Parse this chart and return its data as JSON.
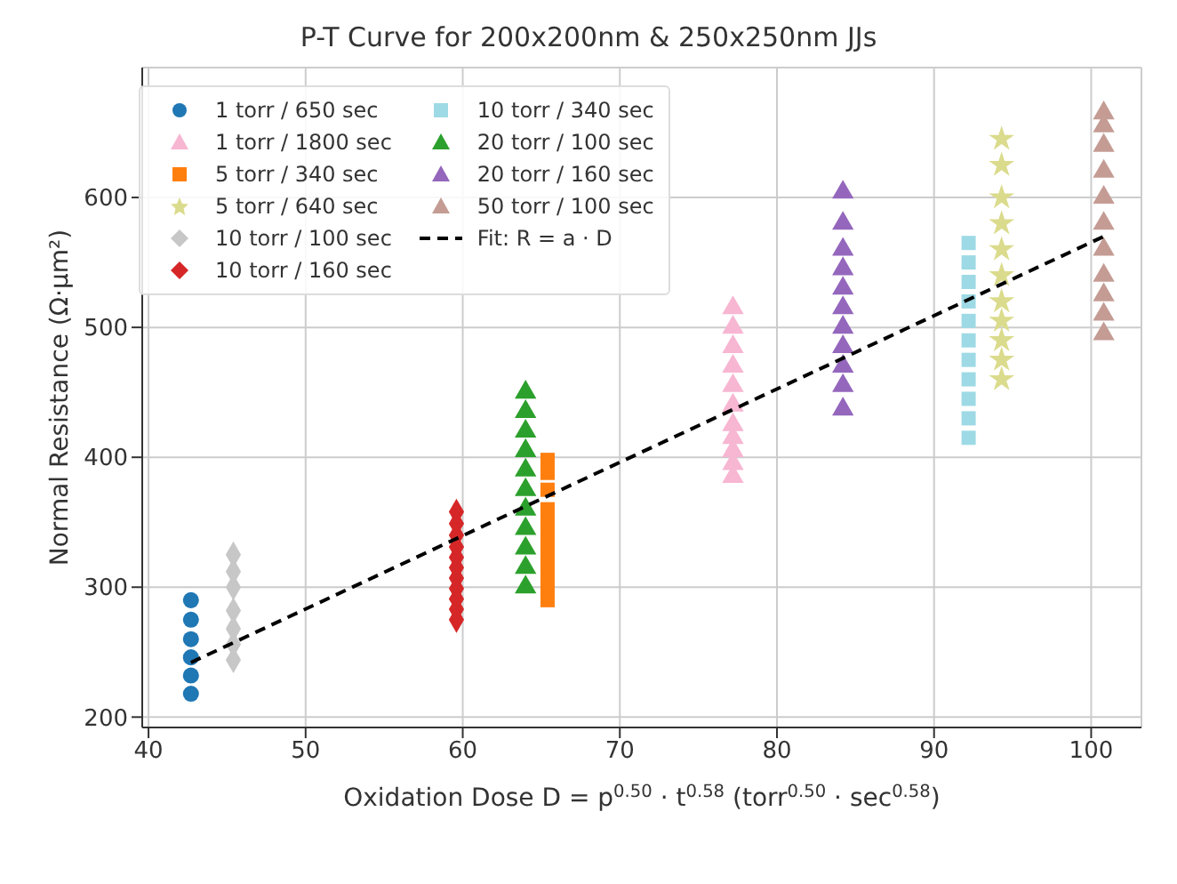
{
  "chart_data": {
    "type": "scatter",
    "title": "P-T Curve for 200x200nm & 250x250nm JJs",
    "xlabel": "Oxidation Dose D = p$^{0.50}$ · t$^{0.58}$ (torr$^{0.50}$ · sec$^{0.58}$)",
    "ylabel": "Normal Resistance (Ω·μm²)",
    "xlim": [
      39.6,
      103.2
    ],
    "xticks": [
      40,
      50,
      60,
      70,
      80,
      90,
      100
    ],
    "ylim": [
      192,
      700
    ],
    "yticks": [
      200,
      300,
      400,
      500,
      600
    ],
    "grid": true,
    "legend": "top left",
    "series": [
      {
        "name": "1 torr / 650 sec",
        "color": "#1f77b4",
        "marker": "circle",
        "x": [
          42.7,
          42.7,
          42.7,
          42.7,
          42.7,
          42.7
        ],
        "values": [
          218,
          232,
          246,
          260,
          275,
          290
        ]
      },
      {
        "name": "1 torr / 1800 sec",
        "color": "#f7b6d2",
        "marker": "triangle",
        "x": [
          77.2,
          77.2,
          77.2,
          77.2,
          77.2,
          77.2,
          77.2,
          77.2,
          77.2,
          77.2,
          77.2
        ],
        "values": [
          385,
          395,
          405,
          415,
          425,
          440,
          455,
          470,
          485,
          500,
          515
        ]
      },
      {
        "name": "5 torr / 340 sec",
        "color": "#ff7f0e",
        "marker": "square",
        "x": [
          65.4,
          65.4,
          65.4,
          65.4,
          65.4,
          65.4,
          65.4,
          65.4,
          65.4,
          65.4,
          65.4
        ],
        "values": [
          290,
          300,
          310,
          320,
          330,
          340,
          350,
          360,
          375,
          388,
          398
        ]
      },
      {
        "name": "5 torr / 640 sec",
        "color": "#dbdb8d",
        "marker": "star",
        "x": [
          94.3,
          94.3,
          94.3,
          94.3,
          94.3,
          94.3,
          94.3,
          94.3,
          94.3,
          94.3,
          94.3
        ],
        "values": [
          460,
          475,
          490,
          505,
          520,
          540,
          560,
          580,
          600,
          625,
          645
        ]
      },
      {
        "name": "10 torr / 100 sec",
        "color": "#c7c7c7",
        "marker": "diamond",
        "x": [
          45.4,
          45.4,
          45.4,
          45.4,
          45.4,
          45.4,
          45.4
        ],
        "values": [
          244,
          256,
          268,
          282,
          300,
          312,
          325
        ]
      },
      {
        "name": "10 torr / 160 sec",
        "color": "#d62728",
        "marker": "diamond",
        "x": [
          59.6,
          59.6,
          59.6,
          59.6,
          59.6,
          59.6,
          59.6,
          59.6,
          59.6,
          59.6,
          59.6
        ],
        "values": [
          275,
          283,
          291,
          299,
          307,
          315,
          323,
          331,
          340,
          349,
          358
        ]
      },
      {
        "name": "10 torr / 340 sec",
        "color": "#9edae5",
        "marker": "square",
        "x": [
          92.2,
          92.2,
          92.2,
          92.2,
          92.2,
          92.2,
          92.2,
          92.2,
          92.2,
          92.2,
          92.2
        ],
        "values": [
          415,
          430,
          445,
          460,
          475,
          490,
          505,
          520,
          535,
          550,
          565
        ]
      },
      {
        "name": "20 torr / 100 sec",
        "color": "#2ca02c",
        "marker": "triangle",
        "x": [
          64.0,
          64.0,
          64.0,
          64.0,
          64.0,
          64.0,
          64.0,
          64.0,
          64.0,
          64.0,
          64.0
        ],
        "values": [
          300,
          315,
          330,
          345,
          360,
          375,
          390,
          405,
          420,
          435,
          450
        ]
      },
      {
        "name": "20 torr / 160 sec",
        "color": "#9467bd",
        "marker": "triangle",
        "x": [
          84.2,
          84.2,
          84.2,
          84.2,
          84.2,
          84.2,
          84.2,
          84.2,
          84.2,
          84.2,
          84.2
        ],
        "values": [
          437,
          455,
          470,
          485,
          500,
          515,
          530,
          545,
          560,
          580,
          604
        ]
      },
      {
        "name": "50 torr / 100 sec",
        "color": "#c49c94",
        "marker": "triangle",
        "x": [
          100.8,
          100.8,
          100.8,
          100.8,
          100.8,
          100.8,
          100.8,
          100.8,
          100.8,
          100.8,
          100.8
        ],
        "values": [
          495,
          510,
          525,
          540,
          560,
          580,
          600,
          620,
          640,
          655,
          665
        ]
      },
      {
        "name": "Fit: R = a · D",
        "type": "line",
        "color": "#000000",
        "marker": "none",
        "line_style": "dashed",
        "x": [
          42.7,
          100.8
        ],
        "values": [
          242,
          570
        ]
      }
    ]
  }
}
